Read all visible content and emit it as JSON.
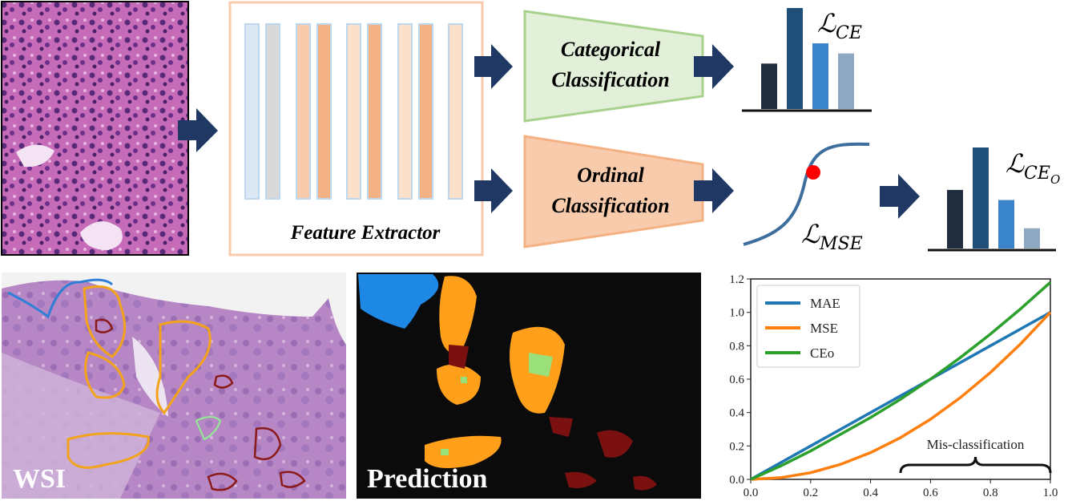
{
  "labels": {
    "feature_extractor": "Feature Extractor",
    "categorical_1": "Categorical",
    "categorical_2": "Classification",
    "ordinal_1": "Ordinal",
    "ordinal_2": "Classification",
    "wsi": "WSI",
    "prediction": "Prediction",
    "misclassification": "Mis-classification"
  },
  "losses": {
    "ce": {
      "symbol": "ℒ",
      "sub": "CE"
    },
    "ceo": {
      "symbol": "ℒ",
      "sub": "CE",
      "subsub": "O"
    },
    "mse": {
      "symbol": "ℒ",
      "sub": "MSE"
    }
  },
  "colors": {
    "arrow": "#1f3864",
    "categorical_fill": "#e2efd9",
    "categorical_stroke": "#a9d18e",
    "ordinal_fill": "#f8cbad",
    "ordinal_stroke": "#f4b183",
    "extractor_border": "#f8cbad",
    "bar_colors": [
      "#1f2d3d",
      "#1f4e79",
      "#3a84c9",
      "#8fa8c2"
    ],
    "mae": "#1f77b4",
    "mse": "#ff7f0e",
    "ceo": "#2ca02c"
  },
  "bar_groups": {
    "ce": [
      0.45,
      1.0,
      0.65,
      0.55
    ],
    "ceo": [
      0.58,
      1.0,
      0.48,
      0.2
    ]
  },
  "chart_data": {
    "type": "line",
    "xlim": [
      0.0,
      1.0
    ],
    "ylim": [
      0.0,
      1.2
    ],
    "xticks": [
      "0.0",
      "0.2",
      "0.4",
      "0.6",
      "0.8",
      "1.0"
    ],
    "yticks": [
      "0.0",
      "0.2",
      "0.4",
      "0.6",
      "0.8",
      "1.0",
      "1.2"
    ],
    "legend_position": "top-left",
    "series": [
      {
        "name": "MAE",
        "color": "#1f77b4",
        "x": [
          0,
          0.1,
          0.2,
          0.3,
          0.4,
          0.5,
          0.6,
          0.7,
          0.8,
          0.9,
          1.0
        ],
        "y": [
          0,
          0.1,
          0.2,
          0.3,
          0.4,
          0.5,
          0.6,
          0.7,
          0.8,
          0.9,
          1.0
        ]
      },
      {
        "name": "MSE",
        "color": "#ff7f0e",
        "x": [
          0,
          0.1,
          0.2,
          0.3,
          0.4,
          0.5,
          0.6,
          0.7,
          0.8,
          0.9,
          1.0
        ],
        "y": [
          0,
          0.01,
          0.04,
          0.09,
          0.16,
          0.25,
          0.36,
          0.49,
          0.64,
          0.81,
          1.0
        ]
      },
      {
        "name": "CEo",
        "color": "#2ca02c",
        "x": [
          0,
          0.1,
          0.2,
          0.3,
          0.4,
          0.5,
          0.6,
          0.7,
          0.8,
          0.9,
          1.0
        ],
        "y": [
          0,
          0.08,
          0.17,
          0.27,
          0.37,
          0.48,
          0.6,
          0.73,
          0.87,
          1.02,
          1.18
        ]
      }
    ],
    "annotations": [
      {
        "text": "Mis-classification",
        "x_from": 0.5,
        "x_to": 1.0
      }
    ]
  }
}
